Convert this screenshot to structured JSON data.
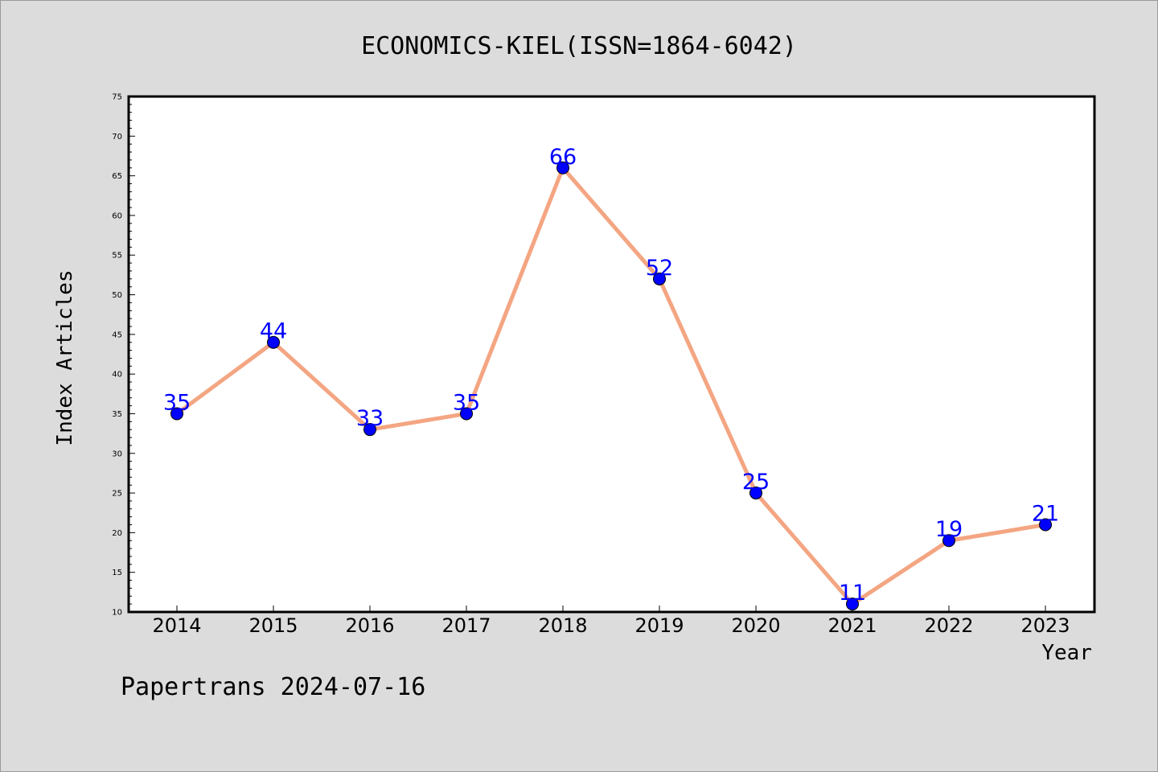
{
  "chart_data": {
    "type": "line",
    "title": "ECONOMICS-KIEL(ISSN=1864-6042)",
    "xlabel": "Year",
    "ylabel": "Index Articles",
    "categories": [
      "2014",
      "2015",
      "2016",
      "2017",
      "2018",
      "2019",
      "2020",
      "2021",
      "2022",
      "2023"
    ],
    "series": [
      {
        "values": [
          35,
          44,
          33,
          35,
          66,
          52,
          25,
          11,
          19,
          21
        ]
      }
    ],
    "ylim": [
      10,
      75
    ],
    "yticks": [
      10,
      15,
      20,
      25,
      30,
      35,
      40,
      45,
      50,
      55,
      60,
      65,
      70,
      75
    ],
    "grid": false,
    "line_color": "#f4a582",
    "marker_color": "#0000ff",
    "label_color": "#0000ff"
  },
  "footer": {
    "text": "Papertrans 2024-07-16"
  }
}
